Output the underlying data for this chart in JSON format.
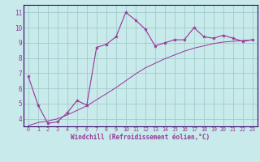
{
  "xlabel": "Windchill (Refroidissement éolien,°C)",
  "background_color": "#c8eaea",
  "grid_color": "#a0cccc",
  "line_color": "#993399",
  "marker_color": "#993399",
  "x_jagged": [
    0,
    1,
    2,
    3,
    4,
    5,
    6,
    7,
    8,
    9,
    10,
    11,
    12,
    13,
    14,
    15,
    16,
    17,
    18,
    19,
    20,
    21,
    22,
    23
  ],
  "y_jagged": [
    6.8,
    4.9,
    3.7,
    3.8,
    4.4,
    5.2,
    4.9,
    8.7,
    8.9,
    9.4,
    11.0,
    10.5,
    9.9,
    8.8,
    9.0,
    9.2,
    9.2,
    10.0,
    9.4,
    9.3,
    9.5,
    9.3,
    9.1,
    9.2
  ],
  "x_smooth": [
    0,
    1,
    2,
    3,
    4,
    5,
    6,
    7,
    8,
    9,
    10,
    11,
    12,
    13,
    14,
    15,
    16,
    17,
    18,
    19,
    20,
    21,
    22,
    23
  ],
  "y_smooth": [
    3.55,
    3.75,
    3.85,
    4.0,
    4.25,
    4.55,
    4.85,
    5.25,
    5.65,
    6.05,
    6.5,
    6.95,
    7.35,
    7.65,
    7.95,
    8.2,
    8.45,
    8.65,
    8.8,
    8.95,
    9.05,
    9.1,
    9.15,
    9.2
  ],
  "ylim": [
    3.5,
    11.5
  ],
  "xlim": [
    -0.5,
    23.5
  ],
  "yticks": [
    4,
    5,
    6,
    7,
    8,
    9,
    10,
    11
  ],
  "xticks": [
    0,
    1,
    2,
    3,
    4,
    5,
    6,
    7,
    8,
    9,
    10,
    11,
    12,
    13,
    14,
    15,
    16,
    17,
    18,
    19,
    20,
    21,
    22,
    23
  ],
  "bottom_bar_color": "#330066",
  "xlabel_color": "#993399",
  "tick_color": "#993399",
  "ylabel_fontsize": 5.5,
  "xlabel_fontsize": 5.5,
  "xtick_fontsize": 4.8,
  "ytick_fontsize": 5.5
}
